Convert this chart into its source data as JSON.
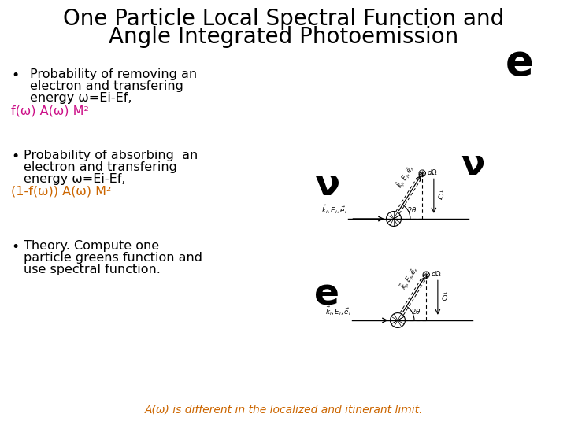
{
  "title_line1": "One Particle Local Spectral Function and",
  "title_line2": "Angle Integrated Photoemission",
  "title_fontsize": 20,
  "bg_color": "#ffffff",
  "text_color": "#000000",
  "pink_color": "#cc1188",
  "orange_color": "#cc6600",
  "bullet1_line1": "Probability of removing an",
  "bullet1_line2": "electron and transfering",
  "bullet1_line3": "energy ω=Ei-Ef,",
  "formula1": "f(ω) A(ω) M²",
  "bullet2_line1": "Probability of absorbing  an",
  "bullet2_line2": "electron and transfering",
  "bullet2_line3": "energy ω=Ei-Ef,",
  "formula2": "(1-f(ω)) A(ω) M²",
  "bullet3_line1": "Theory. Compute one",
  "bullet3_line2": "particle greens function and",
  "bullet3_line3": "use spectral function.",
  "footer": "A(ω) is different in the localized and itinerant limit.",
  "footer_color": "#cc6600"
}
